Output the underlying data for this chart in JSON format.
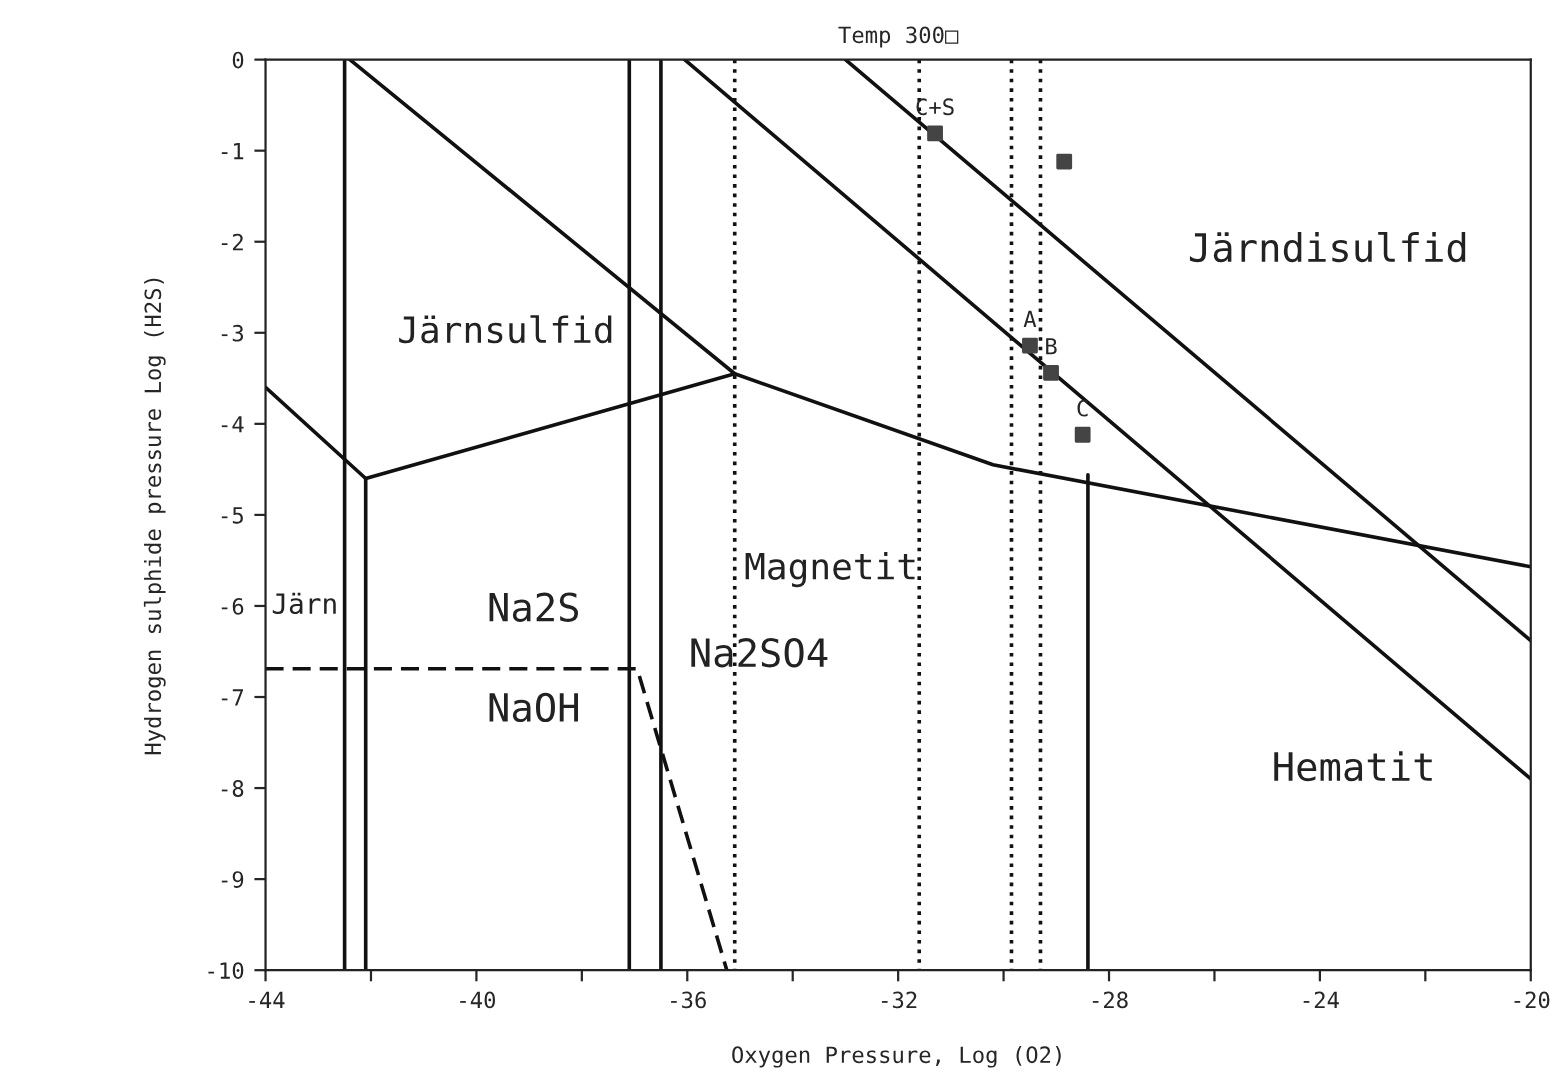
{
  "chart_data": {
    "type": "line",
    "title": "Temp 300□",
    "xlabel": "Oxygen Pressure, Log (O2)",
    "ylabel": "Hydrogen sulphide pressure Log (H2S)",
    "xlim": [
      -44,
      -20
    ],
    "ylim": [
      -10,
      0
    ],
    "xticks": [
      -44,
      {
        "value": -42,
        "label": null
      },
      -40,
      {
        "value": -38,
        "label": null
      },
      -36,
      {
        "value": -34,
        "label": null
      },
      -32,
      {
        "value": -30,
        "label": null
      },
      -28,
      {
        "value": -26,
        "label": null
      },
      -24,
      {
        "value": -22,
        "label": null
      },
      -20
    ],
    "yticks": [
      0,
      -1,
      -2,
      -3,
      -4,
      -5,
      -6,
      -7,
      -8,
      -9,
      -10
    ],
    "grid": false,
    "series": [
      {
        "type": "line",
        "color": "#111111",
        "line_style": "solid",
        "x": [
          -42.4,
          -35.1
        ],
        "values": [
          0,
          -3.45
        ]
      },
      {
        "type": "line",
        "color": "#111111",
        "line_style": "solid",
        "x": [
          -44,
          -42.1,
          -35.1,
          -30.2,
          -20
        ],
        "values": [
          -3.6,
          -4.6,
          -3.45,
          -4.45,
          -5.57
        ]
      },
      {
        "type": "line",
        "color": "#111111",
        "line_style": "solid",
        "x": [
          -42.1,
          -42.1
        ],
        "values": [
          -4.6,
          -10
        ]
      },
      {
        "type": "line",
        "color": "#111111",
        "line_style": "solid",
        "x": [
          -28.4,
          -28.4
        ],
        "values": [
          -4.56,
          -10
        ]
      },
      {
        "type": "line",
        "color": "#111111",
        "line_style": "solid",
        "x": [
          -42.5,
          -42.5
        ],
        "values": [
          0,
          -10
        ]
      },
      {
        "type": "line",
        "color": "#111111",
        "line_style": "solid",
        "x": [
          -37.1,
          -37.1
        ],
        "values": [
          0,
          -10
        ]
      },
      {
        "type": "line",
        "color": "#111111",
        "line_style": "solid",
        "x": [
          -36.5,
          -36.5
        ],
        "values": [
          0,
          -10
        ]
      },
      {
        "type": "line",
        "color": "#111111",
        "line_style": "solid",
        "x": [
          -36.05,
          -20
        ],
        "values": [
          0,
          -7.9
        ]
      },
      {
        "type": "line",
        "color": "#111111",
        "line_style": "solid",
        "x": [
          -33.0,
          -20
        ],
        "values": [
          0,
          -6.38
        ]
      },
      {
        "type": "line",
        "color": "#111111",
        "line_style": "dotted",
        "x": [
          -35.1,
          -35.1
        ],
        "values": [
          0,
          -10
        ]
      },
      {
        "type": "line",
        "color": "#111111",
        "line_style": "dotted",
        "x": [
          -31.6,
          -31.6
        ],
        "values": [
          0,
          -10
        ]
      },
      {
        "type": "line",
        "color": "#111111",
        "line_style": "dotted",
        "x": [
          -29.85,
          -29.85
        ],
        "values": [
          0,
          -10
        ]
      },
      {
        "type": "line",
        "color": "#111111",
        "line_style": "dotted",
        "x": [
          -29.3,
          -29.3
        ],
        "values": [
          0,
          -10
        ]
      },
      {
        "type": "line",
        "color": "#111111",
        "line_style": "dashed",
        "x": [
          -44,
          -36.95,
          -35.25
        ],
        "values": [
          -6.69,
          -6.69,
          -10
        ]
      },
      {
        "type": "scatter",
        "color": "#444444",
        "marker": "square",
        "x": [
          -31.3,
          -28.85,
          -29.5,
          -29.1,
          -28.5
        ],
        "values": [
          -0.81,
          -1.12,
          -3.14,
          -3.44,
          -4.12
        ]
      }
    ],
    "annotations": [
      {
        "text": "C+S",
        "x": -31.3,
        "y": -0.81
      },
      {
        "text": "A",
        "x": -29.5,
        "y": -3.14
      },
      {
        "text": "B",
        "x": -29.1,
        "y": -3.44
      },
      {
        "text": "C",
        "x": -28.5,
        "y": -4.12
      },
      "Järnsulfid",
      "Järndisulfid",
      "Järn",
      "Magnetit",
      "Na2S",
      "NaOH",
      "Na2SO4",
      "Hematit"
    ]
  }
}
